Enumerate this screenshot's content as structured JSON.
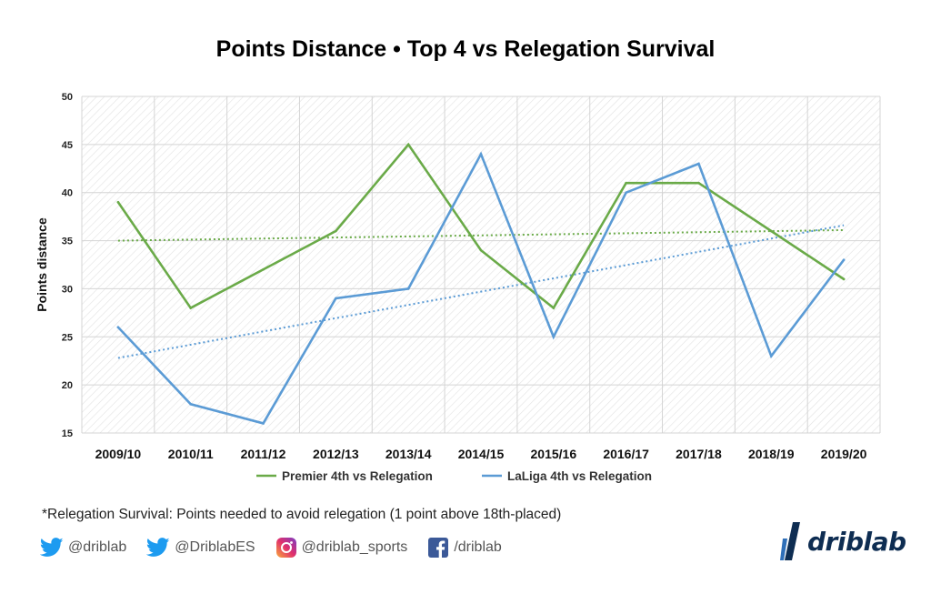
{
  "chart_data": {
    "type": "line",
    "title": "Points Distance • Top 4 vs Relegation Survival",
    "xlabel": "",
    "ylabel": "Points distance",
    "ylim": [
      15,
      50
    ],
    "yticks": [
      15,
      20,
      25,
      30,
      35,
      40,
      45,
      50
    ],
    "categories": [
      "2009/10",
      "2010/11",
      "2011/12",
      "2012/13",
      "2013/14",
      "2014/15",
      "2015/16",
      "2016/17",
      "2017/18",
      "2018/19",
      "2019/20"
    ],
    "series": [
      {
        "name": "Premier 4th vs Relegation",
        "color": "#6aaa48",
        "values": [
          39,
          28,
          32,
          36,
          45,
          34,
          28,
          41,
          41,
          36,
          31
        ],
        "trendline": [
          35.0,
          36.1
        ]
      },
      {
        "name": "LaLiga 4th vs Relegation",
        "color": "#5b9bd5",
        "values": [
          26,
          18,
          16,
          29,
          30,
          44,
          25,
          40,
          43,
          23,
          33
        ],
        "trendline": [
          22.8,
          36.6
        ]
      }
    ],
    "grid": true,
    "legend": "bottom"
  },
  "footnote": "*Relegation Survival: Points needed to avoid relegation (1 point above 18th-placed)",
  "socials": [
    {
      "icon": "twitter-icon",
      "handle": "@driblab"
    },
    {
      "icon": "twitter-icon",
      "handle": "@DriblabES"
    },
    {
      "icon": "instagram-icon",
      "handle": "@driblab_sports"
    },
    {
      "icon": "facebook-icon",
      "handle": "/driblab"
    }
  ],
  "brand": {
    "name": "driblab",
    "color": "#0e2d52"
  }
}
